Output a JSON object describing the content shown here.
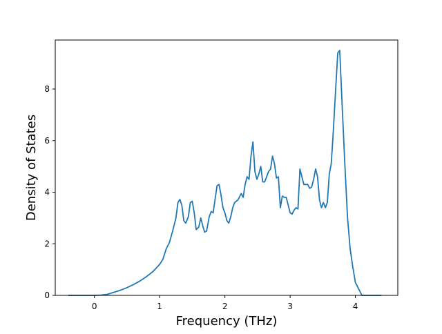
{
  "chart_data": {
    "type": "line",
    "title": "",
    "xlabel": "Frequency (THz)",
    "ylabel": "Density of States",
    "xlim": [
      -0.6,
      4.65
    ],
    "ylim": [
      0,
      9.9
    ],
    "xticks": [
      0,
      1,
      2,
      3,
      4
    ],
    "yticks": [
      0,
      2,
      4,
      6,
      8
    ],
    "xtick_labels": [
      "0",
      "1",
      "2",
      "3",
      "4"
    ],
    "ytick_labels": [
      "0",
      "2",
      "4",
      "6",
      "8"
    ],
    "grid": false,
    "legend": "none",
    "series": [
      {
        "color": "#1f77b4",
        "x": [
          -0.4,
          -0.2,
          0.0,
          0.1,
          0.2,
          0.3,
          0.4,
          0.5,
          0.6,
          0.7,
          0.8,
          0.9,
          1.0,
          1.05,
          1.1,
          1.15,
          1.2,
          1.25,
          1.28,
          1.31,
          1.34,
          1.37,
          1.4,
          1.44,
          1.47,
          1.5,
          1.53,
          1.56,
          1.6,
          1.63,
          1.66,
          1.69,
          1.72,
          1.76,
          1.79,
          1.82,
          1.86,
          1.88,
          1.91,
          1.94,
          1.97,
          2.0,
          2.03,
          2.06,
          2.09,
          2.12,
          2.15,
          2.2,
          2.25,
          2.28,
          2.31,
          2.34,
          2.37,
          2.4,
          2.43,
          2.46,
          2.49,
          2.52,
          2.55,
          2.58,
          2.61,
          2.64,
          2.67,
          2.7,
          2.73,
          2.76,
          2.79,
          2.82,
          2.85,
          2.88,
          2.91,
          2.94,
          2.97,
          3.0,
          3.03,
          3.06,
          3.09,
          3.12,
          3.15,
          3.18,
          3.21,
          3.24,
          3.27,
          3.3,
          3.33,
          3.36,
          3.39,
          3.42,
          3.45,
          3.48,
          3.51,
          3.54,
          3.57,
          3.6,
          3.63,
          3.66,
          3.7,
          3.73,
          3.76,
          3.8,
          3.84,
          3.88,
          3.92,
          3.96,
          3.98,
          4.0,
          4.1,
          4.2,
          4.4
        ],
        "y": [
          0.0,
          0.0,
          0.0,
          0.01,
          0.04,
          0.12,
          0.2,
          0.3,
          0.42,
          0.56,
          0.73,
          0.93,
          1.2,
          1.4,
          1.8,
          2.05,
          2.5,
          3.0,
          3.6,
          3.72,
          3.5,
          2.9,
          2.8,
          3.05,
          3.6,
          3.65,
          3.2,
          2.55,
          2.65,
          3.0,
          2.7,
          2.45,
          2.5,
          3.05,
          3.25,
          3.2,
          3.9,
          4.25,
          4.3,
          3.9,
          3.4,
          3.2,
          2.9,
          2.8,
          3.05,
          3.4,
          3.6,
          3.7,
          3.95,
          3.8,
          4.3,
          4.6,
          4.5,
          5.4,
          5.95,
          4.8,
          4.5,
          4.7,
          5.0,
          4.4,
          4.4,
          4.6,
          4.8,
          4.9,
          5.4,
          5.1,
          4.55,
          4.6,
          3.4,
          3.85,
          3.8,
          3.8,
          3.5,
          3.2,
          3.15,
          3.3,
          3.4,
          3.35,
          4.9,
          4.6,
          4.3,
          4.3,
          4.3,
          4.15,
          4.2,
          4.5,
          4.9,
          4.6,
          3.7,
          3.4,
          3.6,
          3.4,
          3.6,
          4.7,
          5.1,
          6.3,
          8.1,
          9.4,
          9.5,
          7.2,
          5.0,
          3.0,
          1.8,
          1.1,
          0.8,
          0.5,
          0.0,
          0.0,
          0.0
        ]
      }
    ]
  }
}
